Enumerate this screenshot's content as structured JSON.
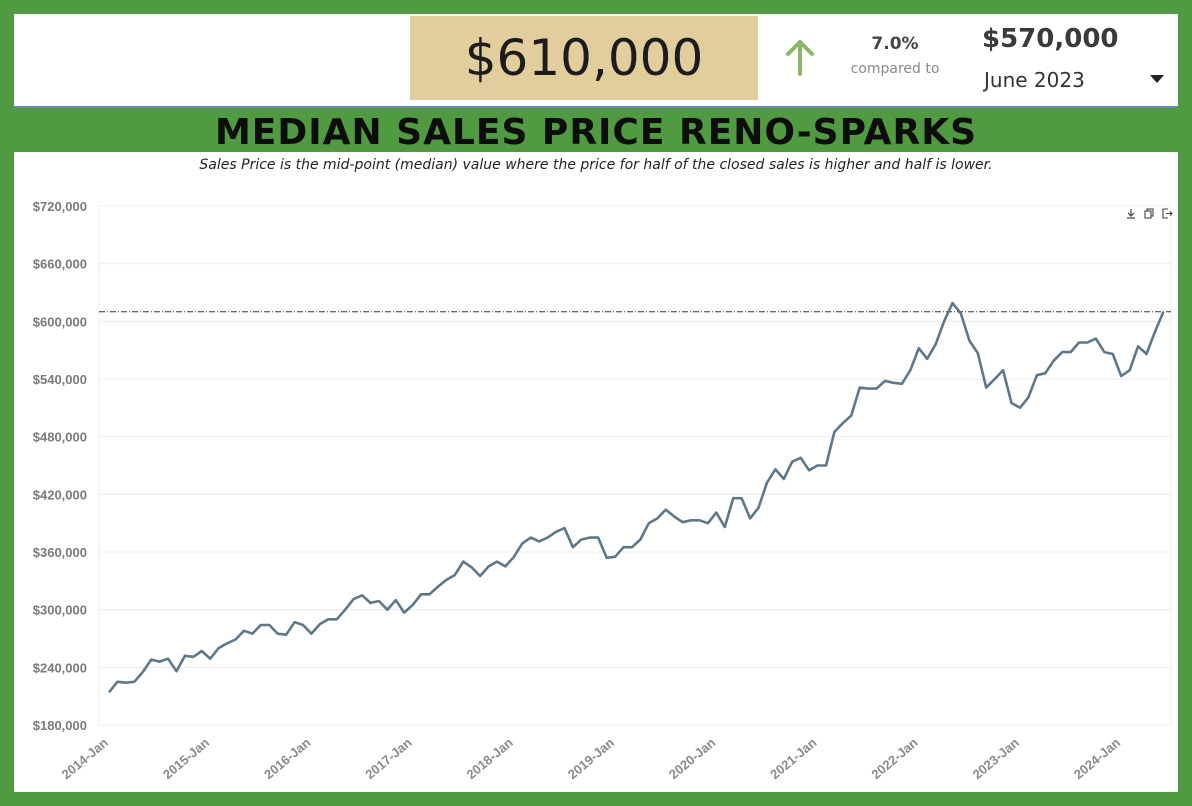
{
  "kpi": {
    "current_value": "$610,000",
    "change_pct": "7.0%",
    "compared_to_label": "compared to",
    "compare_value": "$570,000",
    "compare_period": "June 2023",
    "arrow_color": "#8bb56a",
    "current_bg": "#e2cd9c"
  },
  "title": "MEDIAN SALES PRICE RENO-SPARKS",
  "toolbar": {
    "icons": [
      "download-icon",
      "copy-icon",
      "export-icon"
    ]
  },
  "chart_data": {
    "type": "line",
    "subtitle": "Sales Price is the mid-point (median) value where the price for half of the closed sales is higher and half is lower.",
    "xlabel": "",
    "ylabel": "",
    "ylim": [
      180000,
      720000
    ],
    "yticks": [
      180000,
      240000,
      300000,
      360000,
      420000,
      480000,
      540000,
      600000,
      660000,
      720000
    ],
    "ytick_labels": [
      "$180,000",
      "$240,000",
      "$300,000",
      "$360,000",
      "$420,000",
      "$480,000",
      "$540,000",
      "$600,000",
      "$660,000",
      "$720,000"
    ],
    "xtick_labels": [
      "2014-Jan",
      "2015-Jan",
      "2016-Jan",
      "2017-Jan",
      "2018-Jan",
      "2019-Jan",
      "2020-Jan",
      "2021-Jan",
      "2022-Jan",
      "2023-Jan",
      "2024-Jan"
    ],
    "reference_line": 610000,
    "grid": true,
    "line_color": "#5d7889",
    "series": [
      {
        "values": [
          214000,
          225000,
          224000,
          225000,
          235000,
          248000,
          246000,
          249000,
          236000,
          252000,
          251000,
          257000,
          249000,
          260000,
          265000,
          269000,
          278000,
          275000,
          284000,
          284000,
          275000,
          274000,
          287000,
          284000,
          275000,
          285000,
          290000,
          290000,
          300000,
          311000,
          315000,
          307000,
          309000,
          300000,
          310000,
          297000,
          305000,
          316000,
          316000,
          324000,
          331000,
          336000,
          350000,
          344000,
          335000,
          345000,
          350000,
          345000,
          355000,
          369000,
          375000,
          371000,
          375000,
          381000,
          385000,
          365000,
          373000,
          375000,
          375000,
          354000,
          355000,
          365000,
          365000,
          373000,
          390000,
          395000,
          404000,
          397000,
          391000,
          393000,
          393000,
          390000,
          401000,
          386000,
          416000,
          416000,
          395000,
          406000,
          432000,
          446000,
          436000,
          454000,
          458000,
          445000,
          450000,
          450000,
          485000,
          494000,
          502000,
          531000,
          530000,
          530000,
          538000,
          536000,
          535000,
          549000,
          572000,
          561000,
          576000,
          600000,
          619000,
          608000,
          580000,
          567000,
          531000,
          540000,
          549000,
          515000,
          510000,
          521000,
          544000,
          546000,
          559000,
          568000,
          568000,
          578000,
          578000,
          582000,
          568000,
          566000,
          543000,
          549000,
          574000,
          566000,
          589000,
          610000
        ]
      }
    ]
  }
}
